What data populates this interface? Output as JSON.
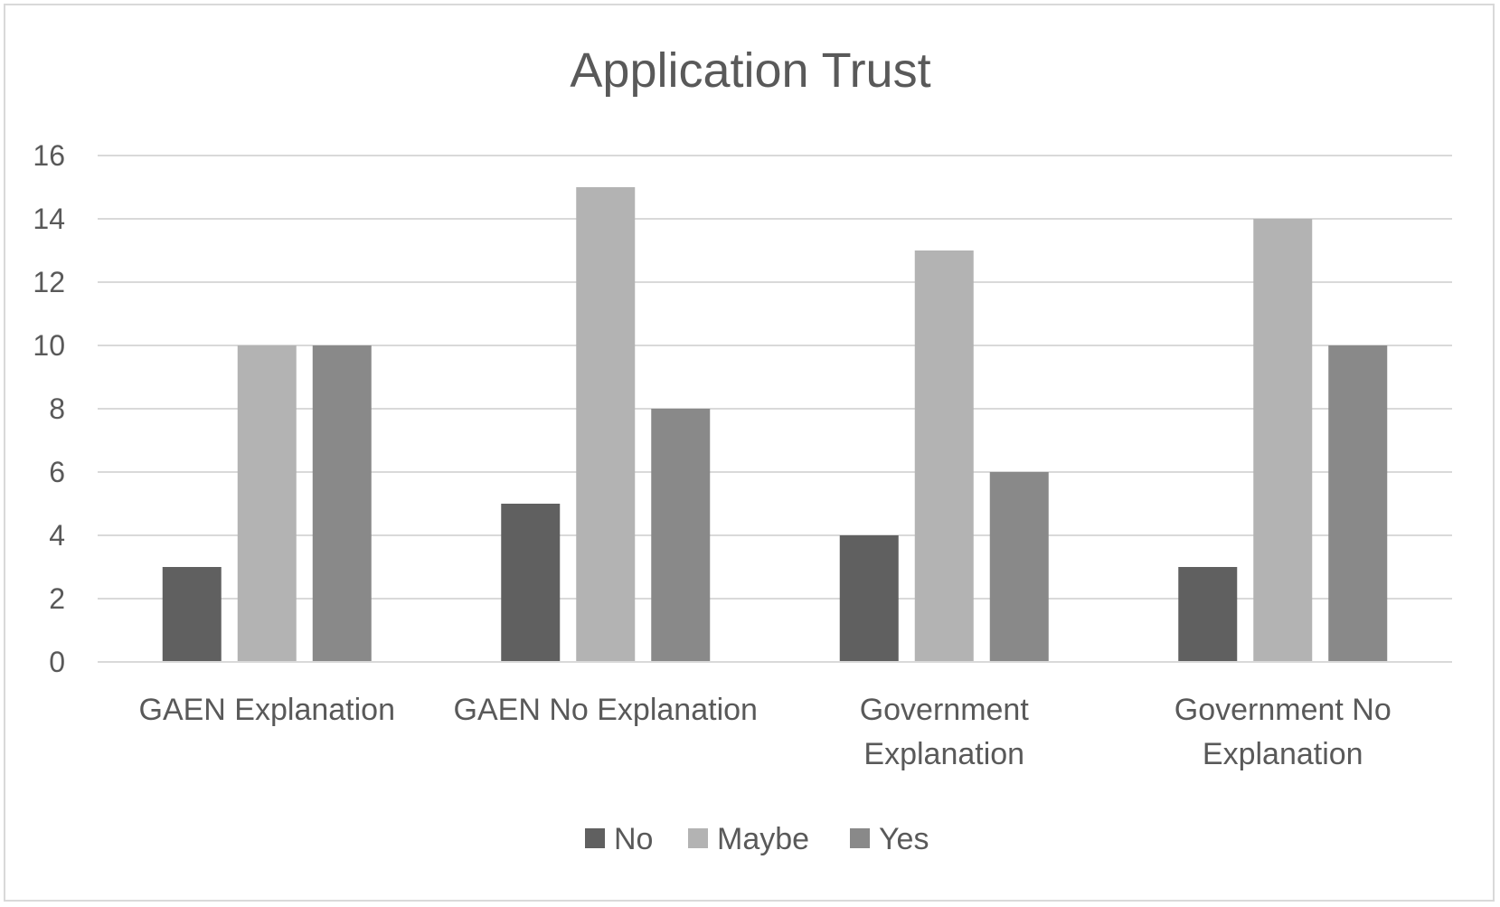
{
  "chart_data": {
    "type": "bar",
    "title": "Application Trust",
    "xlabel": "",
    "ylabel": "",
    "categories": [
      [
        "GAEN Explanation"
      ],
      [
        "GAEN No Explanation"
      ],
      [
        "Government",
        "Explanation"
      ],
      [
        "Government No",
        "Explanation"
      ]
    ],
    "series": [
      {
        "name": "No",
        "color": "#606060",
        "values": [
          3,
          5,
          4,
          3
        ]
      },
      {
        "name": "Maybe",
        "color": "#b3b3b3",
        "values": [
          10,
          15,
          13,
          14
        ]
      },
      {
        "name": "Yes",
        "color": "#898989",
        "values": [
          10,
          8,
          6,
          10
        ]
      }
    ],
    "ylim": [
      0,
      16
    ],
    "yticks": [
      0,
      2,
      4,
      6,
      8,
      10,
      12,
      14,
      16
    ],
    "grid": true,
    "legend_position": "bottom"
  }
}
